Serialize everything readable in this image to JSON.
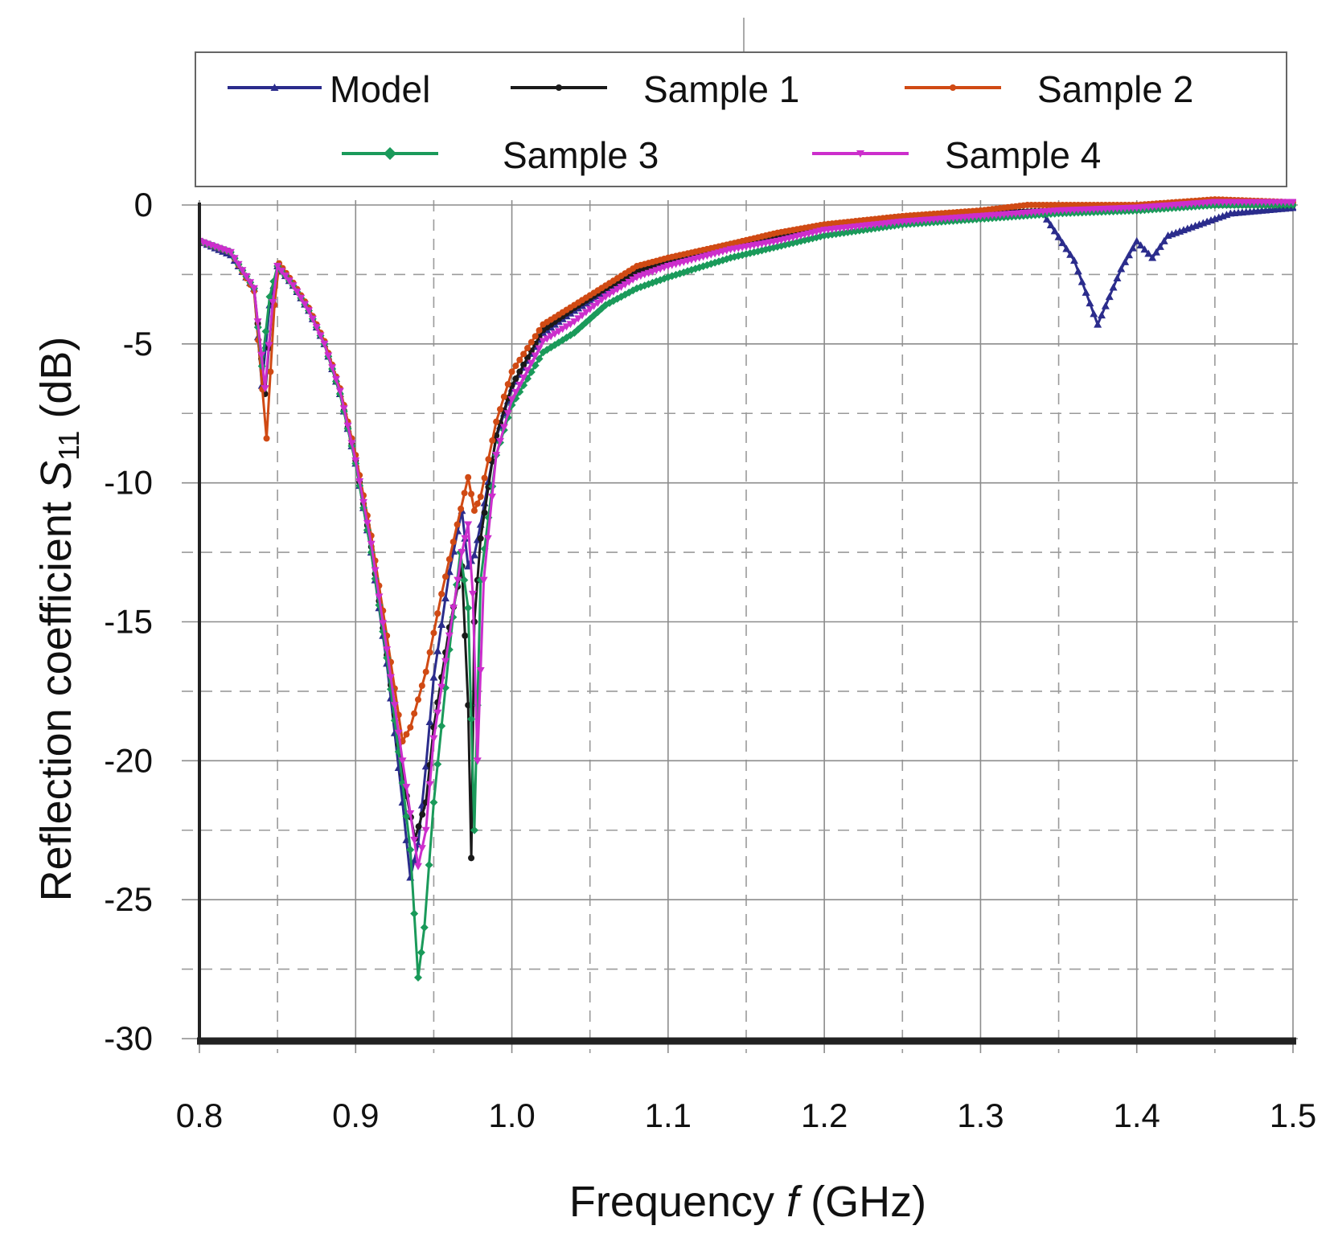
{
  "chart_data": {
    "type": "line",
    "title": "",
    "xlabel": "Frequency",
    "xlabel_var": "f",
    "xlabel_unit": "(GHz)",
    "ylabel": "Reflection coefficient",
    "ylabel_var": "S",
    "ylabel_sub": "11",
    "ylabel_unit": "(dB)",
    "xlim": [
      0.8,
      1.5
    ],
    "ylim": [
      -30,
      0
    ],
    "x_ticks": [
      0.8,
      0.9,
      1.0,
      1.1,
      1.2,
      1.3,
      1.4,
      1.5
    ],
    "x_tick_labels": [
      "0.8",
      "0.9",
      "1.0",
      "1.1",
      "1.2",
      "1.3",
      "1.4",
      "1.5"
    ],
    "y_ticks": [
      0,
      -5,
      -10,
      -15,
      -20,
      -25,
      -30
    ],
    "y_tick_labels": [
      "0",
      "-5",
      "-10",
      "-15",
      "-20",
      "-25",
      "-30"
    ],
    "grid": true,
    "legend_position": "top",
    "series": [
      {
        "name": "Model",
        "color": "#2b2c8c",
        "marker": "triangle",
        "points": [
          [
            0.8,
            -1.3
          ],
          [
            0.82,
            -1.8
          ],
          [
            0.835,
            -3.0
          ],
          [
            0.84,
            -6.5
          ],
          [
            0.845,
            -3.6
          ],
          [
            0.85,
            -2.2
          ],
          [
            0.86,
            -2.9
          ],
          [
            0.87,
            -3.8
          ],
          [
            0.88,
            -5.0
          ],
          [
            0.89,
            -6.8
          ],
          [
            0.9,
            -9.3
          ],
          [
            0.91,
            -12.5
          ],
          [
            0.92,
            -16.5
          ],
          [
            0.93,
            -21.5
          ],
          [
            0.935,
            -24.2
          ],
          [
            0.94,
            -23.0
          ],
          [
            0.945,
            -20.2
          ],
          [
            0.95,
            -17.0
          ],
          [
            0.96,
            -13.2
          ],
          [
            0.968,
            -11.0
          ],
          [
            0.972,
            -13.0
          ],
          [
            0.976,
            -12.6
          ],
          [
            0.98,
            -11.5
          ],
          [
            0.99,
            -8.4
          ],
          [
            1.0,
            -6.6
          ],
          [
            1.02,
            -4.6
          ],
          [
            1.04,
            -3.8
          ],
          [
            1.06,
            -3.1
          ],
          [
            1.08,
            -2.5
          ],
          [
            1.1,
            -2.1
          ],
          [
            1.14,
            -1.5
          ],
          [
            1.17,
            -1.2
          ],
          [
            1.2,
            -0.8
          ],
          [
            1.25,
            -0.5
          ],
          [
            1.3,
            -0.3
          ],
          [
            1.34,
            -0.3
          ],
          [
            1.36,
            -2.0
          ],
          [
            1.375,
            -4.3
          ],
          [
            1.39,
            -2.3
          ],
          [
            1.4,
            -1.3
          ],
          [
            1.41,
            -1.9
          ],
          [
            1.42,
            -1.1
          ],
          [
            1.44,
            -0.7
          ],
          [
            1.46,
            -0.3
          ],
          [
            1.5,
            -0.1
          ]
        ]
      },
      {
        "name": "Sample 1",
        "color": "#1a1a1a",
        "marker": "circle",
        "points": [
          [
            0.8,
            -1.3
          ],
          [
            0.82,
            -1.7
          ],
          [
            0.835,
            -3.0
          ],
          [
            0.842,
            -6.8
          ],
          [
            0.847,
            -3.5
          ],
          [
            0.85,
            -2.2
          ],
          [
            0.86,
            -2.9
          ],
          [
            0.87,
            -3.8
          ],
          [
            0.88,
            -5.0
          ],
          [
            0.89,
            -6.8
          ],
          [
            0.9,
            -9.2
          ],
          [
            0.91,
            -12.3
          ],
          [
            0.92,
            -16.2
          ],
          [
            0.93,
            -20.5
          ],
          [
            0.938,
            -22.8
          ],
          [
            0.945,
            -21.5
          ],
          [
            0.95,
            -18.8
          ],
          [
            0.96,
            -15.2
          ],
          [
            0.968,
            -13.0
          ],
          [
            0.972,
            -18.0
          ],
          [
            0.974,
            -23.5
          ],
          [
            0.976,
            -15.0
          ],
          [
            0.98,
            -12.0
          ],
          [
            0.99,
            -8.3
          ],
          [
            1.0,
            -6.5
          ],
          [
            1.02,
            -4.5
          ],
          [
            1.04,
            -3.7
          ],
          [
            1.06,
            -3.0
          ],
          [
            1.08,
            -2.4
          ],
          [
            1.1,
            -2.0
          ],
          [
            1.14,
            -1.4
          ],
          [
            1.17,
            -1.1
          ],
          [
            1.2,
            -0.8
          ],
          [
            1.25,
            -0.5
          ],
          [
            1.3,
            -0.3
          ],
          [
            1.35,
            -0.2
          ],
          [
            1.4,
            -0.1
          ],
          [
            1.45,
            0.0
          ],
          [
            1.5,
            0.0
          ]
        ]
      },
      {
        "name": "Sample 2",
        "color": "#d04a14",
        "marker": "circle",
        "points": [
          [
            0.8,
            -1.3
          ],
          [
            0.82,
            -1.7
          ],
          [
            0.835,
            -3.1
          ],
          [
            0.843,
            -8.4
          ],
          [
            0.848,
            -3.6
          ],
          [
            0.851,
            -2.1
          ],
          [
            0.86,
            -2.8
          ],
          [
            0.87,
            -3.7
          ],
          [
            0.88,
            -4.9
          ],
          [
            0.89,
            -6.6
          ],
          [
            0.9,
            -9.0
          ],
          [
            0.91,
            -11.9
          ],
          [
            0.92,
            -15.5
          ],
          [
            0.93,
            -19.3
          ],
          [
            0.935,
            -18.8
          ],
          [
            0.945,
            -16.8
          ],
          [
            0.955,
            -14.0
          ],
          [
            0.965,
            -11.5
          ],
          [
            0.972,
            -9.8
          ],
          [
            0.976,
            -11.0
          ],
          [
            0.98,
            -10.5
          ],
          [
            0.99,
            -7.8
          ],
          [
            1.0,
            -6.0
          ],
          [
            1.02,
            -4.3
          ],
          [
            1.04,
            -3.6
          ],
          [
            1.06,
            -2.9
          ],
          [
            1.08,
            -2.2
          ],
          [
            1.1,
            -1.9
          ],
          [
            1.14,
            -1.4
          ],
          [
            1.17,
            -1.0
          ],
          [
            1.2,
            -0.7
          ],
          [
            1.25,
            -0.4
          ],
          [
            1.3,
            -0.2
          ],
          [
            1.33,
            0.0
          ],
          [
            1.35,
            0.0
          ],
          [
            1.4,
            0.0
          ],
          [
            1.45,
            0.2
          ],
          [
            1.5,
            0.1
          ]
        ]
      },
      {
        "name": "Sample 3",
        "color": "#1a9a5a",
        "marker": "diamond",
        "points": [
          [
            0.8,
            -1.3
          ],
          [
            0.82,
            -1.7
          ],
          [
            0.835,
            -3.0
          ],
          [
            0.84,
            -5.8
          ],
          [
            0.845,
            -3.3
          ],
          [
            0.85,
            -2.2
          ],
          [
            0.86,
            -2.9
          ],
          [
            0.87,
            -3.8
          ],
          [
            0.88,
            -5.0
          ],
          [
            0.89,
            -6.8
          ],
          [
            0.9,
            -9.3
          ],
          [
            0.91,
            -12.5
          ],
          [
            0.92,
            -16.3
          ],
          [
            0.93,
            -20.8
          ],
          [
            0.935,
            -23.2
          ],
          [
            0.94,
            -27.8
          ],
          [
            0.944,
            -26.0
          ],
          [
            0.95,
            -21.5
          ],
          [
            0.96,
            -16.0
          ],
          [
            0.967,
            -12.5
          ],
          [
            0.972,
            -14.5
          ],
          [
            0.976,
            -22.5
          ],
          [
            0.98,
            -13.5
          ],
          [
            0.99,
            -9.0
          ],
          [
            1.0,
            -7.2
          ],
          [
            1.02,
            -5.3
          ],
          [
            1.04,
            -4.6
          ],
          [
            1.06,
            -3.6
          ],
          [
            1.08,
            -3.0
          ],
          [
            1.1,
            -2.6
          ],
          [
            1.14,
            -1.9
          ],
          [
            1.17,
            -1.5
          ],
          [
            1.2,
            -1.1
          ],
          [
            1.25,
            -0.7
          ],
          [
            1.3,
            -0.5
          ],
          [
            1.35,
            -0.3
          ],
          [
            1.4,
            -0.2
          ],
          [
            1.45,
            0.0
          ],
          [
            1.5,
            0.0
          ]
        ]
      },
      {
        "name": "Sample 4",
        "color": "#cc2ecc",
        "marker": "triangle-down",
        "points": [
          [
            0.8,
            -1.3
          ],
          [
            0.82,
            -1.7
          ],
          [
            0.835,
            -3.0
          ],
          [
            0.842,
            -6.6
          ],
          [
            0.847,
            -3.5
          ],
          [
            0.85,
            -2.2
          ],
          [
            0.86,
            -2.9
          ],
          [
            0.87,
            -3.8
          ],
          [
            0.88,
            -5.0
          ],
          [
            0.89,
            -6.7
          ],
          [
            0.9,
            -9.2
          ],
          [
            0.91,
            -12.2
          ],
          [
            0.92,
            -16.0
          ],
          [
            0.93,
            -20.0
          ],
          [
            0.94,
            -23.8
          ],
          [
            0.945,
            -22.5
          ],
          [
            0.95,
            -19.2
          ],
          [
            0.96,
            -15.5
          ],
          [
            0.968,
            -12.5
          ],
          [
            0.972,
            -11.5
          ],
          [
            0.975,
            -14.0
          ],
          [
            0.978,
            -20.0
          ],
          [
            0.982,
            -13.5
          ],
          [
            0.99,
            -9.0
          ],
          [
            1.0,
            -7.0
          ],
          [
            1.02,
            -4.9
          ],
          [
            1.04,
            -4.2
          ],
          [
            1.06,
            -3.3
          ],
          [
            1.08,
            -2.6
          ],
          [
            1.1,
            -2.2
          ],
          [
            1.14,
            -1.6
          ],
          [
            1.17,
            -1.3
          ],
          [
            1.2,
            -0.9
          ],
          [
            1.25,
            -0.6
          ],
          [
            1.3,
            -0.4
          ],
          [
            1.35,
            -0.2
          ],
          [
            1.4,
            -0.1
          ],
          [
            1.45,
            0.1
          ],
          [
            1.5,
            0.1
          ]
        ]
      }
    ]
  }
}
